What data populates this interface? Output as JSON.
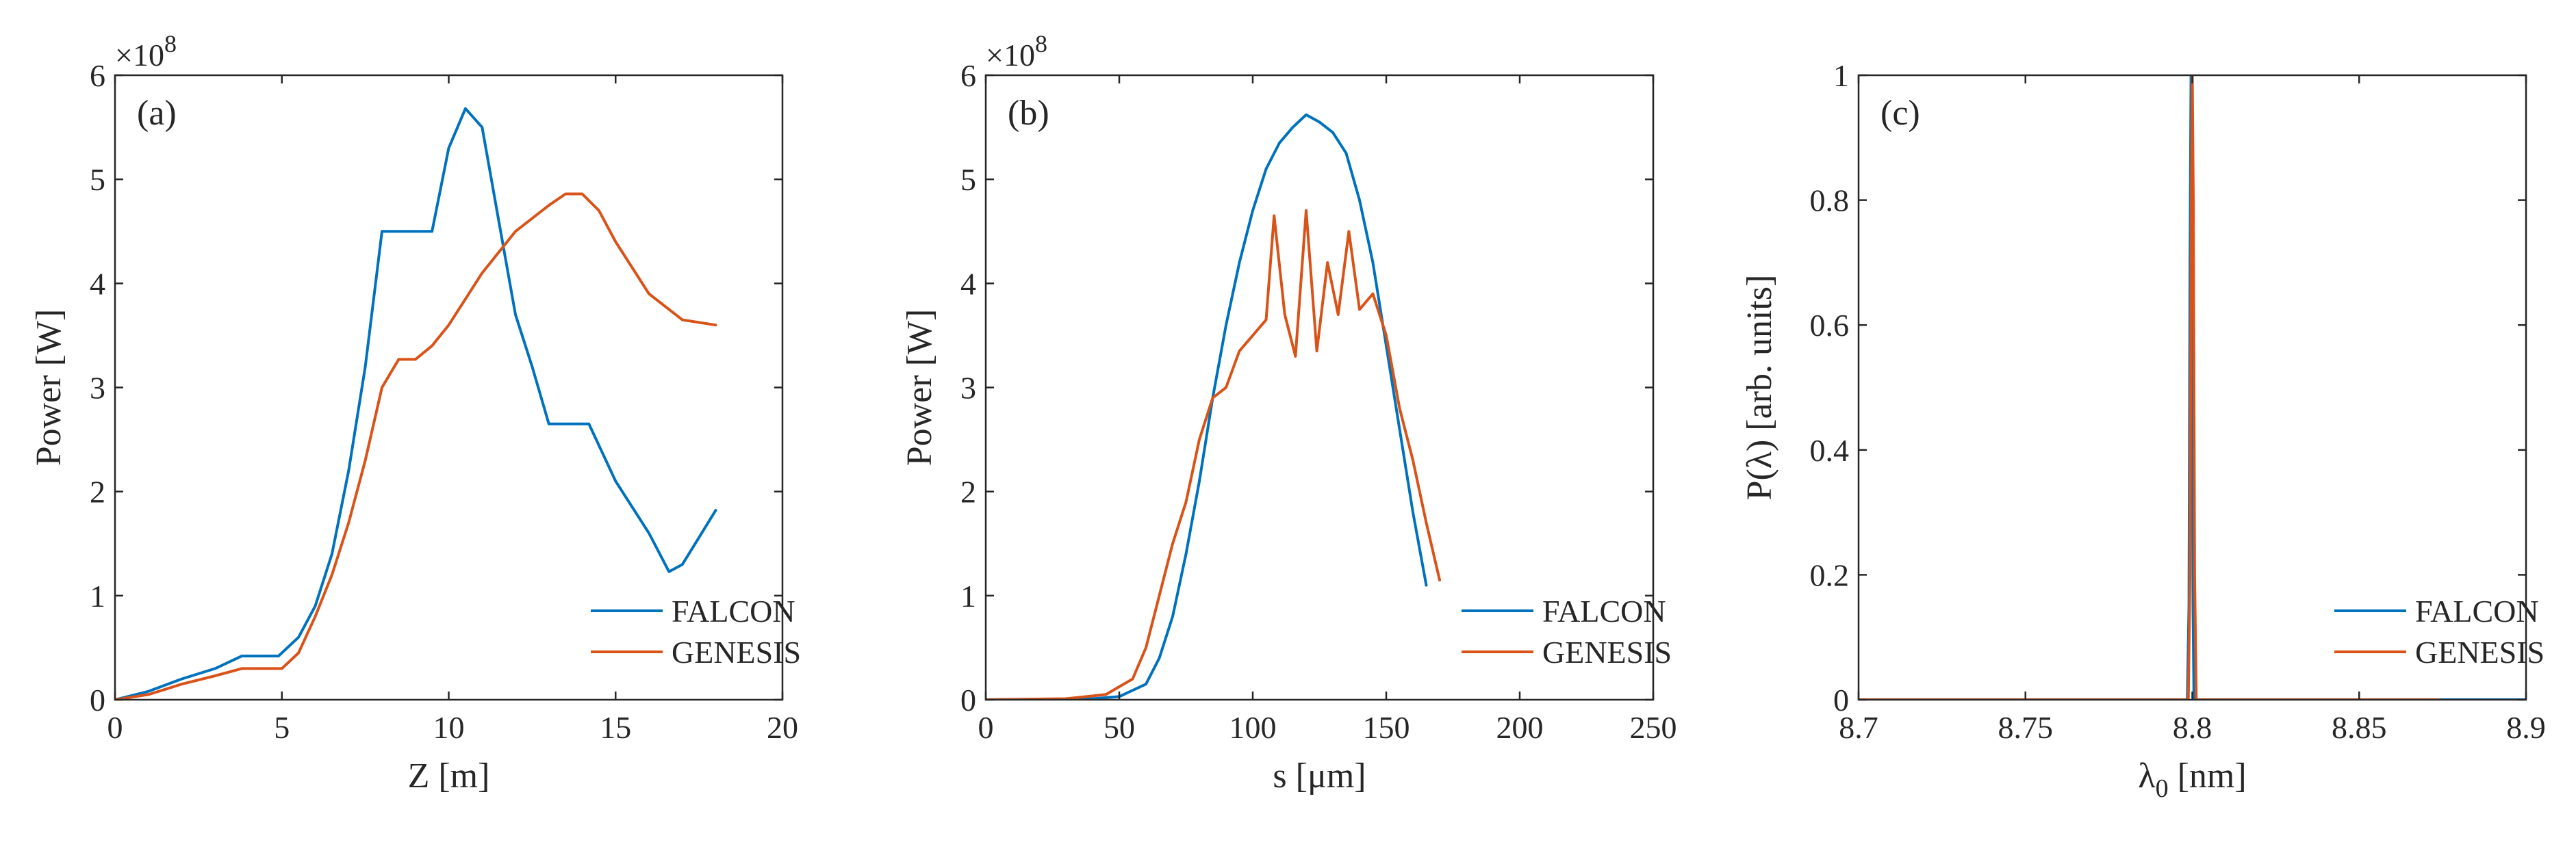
{
  "chart_data": [
    {
      "type": "line",
      "panel_label": "(a)",
      "xlabel": "Z [m]",
      "ylabel": "Power [W]",
      "y_multiplier": "×10",
      "y_multiplier_exp": "8",
      "xlim": [
        0,
        20
      ],
      "ylim": [
        0,
        6
      ],
      "xticks": [
        0,
        5,
        10,
        15,
        20
      ],
      "xtick_labels": [
        "0",
        "5",
        "10",
        "15",
        "20"
      ],
      "yticks": [
        0,
        1,
        2,
        3,
        4,
        5,
        6
      ],
      "ytick_labels": [
        "0",
        "1",
        "2",
        "3",
        "4",
        "5",
        "6"
      ],
      "legend_location": "bottom-right",
      "series": [
        {
          "name": "FALCON",
          "color": "#0072BD",
          "x": [
            0,
            1,
            2,
            3,
            3.8,
            4.2,
            4.9,
            5.5,
            6,
            6.5,
            7,
            7.5,
            8,
            8.5,
            9.5,
            10,
            10.5,
            11,
            11.5,
            12,
            12.5,
            13,
            13.5,
            14.2,
            15,
            16,
            16.6,
            17,
            18
          ],
          "y": [
            0,
            0.08,
            0.2,
            0.3,
            0.42,
            0.42,
            0.42,
            0.6,
            0.9,
            1.4,
            2.2,
            3.2,
            4.5,
            4.5,
            4.5,
            5.3,
            5.68,
            5.5,
            4.6,
            3.7,
            3.2,
            2.65,
            2.65,
            2.65,
            2.1,
            1.6,
            1.23,
            1.3,
            1.82
          ]
        },
        {
          "name": "GENESIS",
          "color": "#D95319",
          "x": [
            0,
            1,
            2,
            3,
            3.8,
            4.5,
            5,
            5.5,
            6,
            6.5,
            7,
            7.5,
            8,
            8.5,
            9,
            9.5,
            10,
            10.5,
            11,
            12,
            13,
            13.5,
            14,
            14.5,
            15,
            16,
            17,
            18
          ],
          "y": [
            0,
            0.05,
            0.15,
            0.23,
            0.3,
            0.3,
            0.3,
            0.45,
            0.8,
            1.2,
            1.7,
            2.3,
            3.0,
            3.27,
            3.27,
            3.4,
            3.6,
            3.85,
            4.1,
            4.5,
            4.75,
            4.86,
            4.86,
            4.7,
            4.4,
            3.9,
            3.65,
            3.6
          ]
        }
      ]
    },
    {
      "type": "line",
      "panel_label": "(b)",
      "xlabel": "s [μm]",
      "ylabel": "Power [W]",
      "y_multiplier": "×10",
      "y_multiplier_exp": "8",
      "xlim": [
        0,
        250
      ],
      "ylim": [
        0,
        6
      ],
      "xticks": [
        0,
        50,
        100,
        150,
        200,
        250
      ],
      "xtick_labels": [
        "0",
        "50",
        "100",
        "150",
        "200",
        "250"
      ],
      "yticks": [
        0,
        1,
        2,
        3,
        4,
        5,
        6
      ],
      "ytick_labels": [
        "0",
        "1",
        "2",
        "3",
        "4",
        "5",
        "6"
      ],
      "legend_location": "bottom-right",
      "series": [
        {
          "name": "FALCON",
          "color": "#0072BD",
          "x": [
            0,
            40,
            50,
            60,
            65,
            70,
            75,
            80,
            85,
            90,
            95,
            100,
            105,
            110,
            115,
            120,
            125,
            130,
            135,
            140,
            145,
            150,
            155,
            160,
            165
          ],
          "y": [
            0,
            0.01,
            0.03,
            0.15,
            0.4,
            0.8,
            1.4,
            2.1,
            2.9,
            3.6,
            4.2,
            4.7,
            5.1,
            5.35,
            5.5,
            5.62,
            5.55,
            5.45,
            5.25,
            4.8,
            4.2,
            3.4,
            2.6,
            1.8,
            1.1
          ]
        },
        {
          "name": "GENESIS",
          "color": "#D95319",
          "x": [
            0,
            30,
            45,
            55,
            60,
            65,
            70,
            75,
            80,
            85,
            90,
            95,
            100,
            105,
            108,
            112,
            116,
            120,
            124,
            128,
            132,
            136,
            140,
            145,
            150,
            155,
            160,
            165,
            170
          ],
          "y": [
            0,
            0.01,
            0.05,
            0.2,
            0.5,
            1.0,
            1.5,
            1.9,
            2.5,
            2.9,
            3.0,
            3.35,
            3.5,
            3.65,
            4.65,
            3.7,
            3.3,
            4.7,
            3.35,
            4.2,
            3.7,
            4.5,
            3.75,
            3.9,
            3.5,
            2.8,
            2.3,
            1.7,
            1.15
          ]
        }
      ]
    },
    {
      "type": "line",
      "panel_label": "(c)",
      "xlabel": "λ0 [nm]",
      "ylabel": "P(λ) [arb. units]",
      "xlim": [
        8.7,
        8.9
      ],
      "ylim": [
        0,
        1
      ],
      "xticks": [
        8.7,
        8.75,
        8.8,
        8.85,
        8.9
      ],
      "xtick_labels": [
        "8.7",
        "8.75",
        "8.8",
        "8.85",
        "8.9"
      ],
      "yticks": [
        0,
        0.2,
        0.4,
        0.6,
        0.8,
        1
      ],
      "ytick_labels": [
        "0",
        "0.2",
        "0.4",
        "0.6",
        "0.8",
        "1"
      ],
      "legend_location": "bottom-right",
      "series": [
        {
          "name": "FALCON",
          "color": "#0072BD",
          "x": [
            8.7,
            8.7985,
            8.799,
            8.7993,
            8.7996,
            8.7999,
            8.8002,
            8.8005,
            8.901
          ],
          "y": [
            0,
            0,
            0.15,
            0.7,
            1.0,
            0.7,
            0.15,
            0,
            0
          ]
        },
        {
          "name": "GENESIS",
          "color": "#D95319",
          "x": [
            8.7,
            8.7988,
            8.7993,
            8.7997,
            8.8,
            8.8003,
            8.8007,
            8.8012,
            8.874
          ],
          "y": [
            0,
            0,
            0.2,
            0.8,
            1.0,
            0.8,
            0.2,
            0,
            0
          ]
        }
      ]
    }
  ]
}
